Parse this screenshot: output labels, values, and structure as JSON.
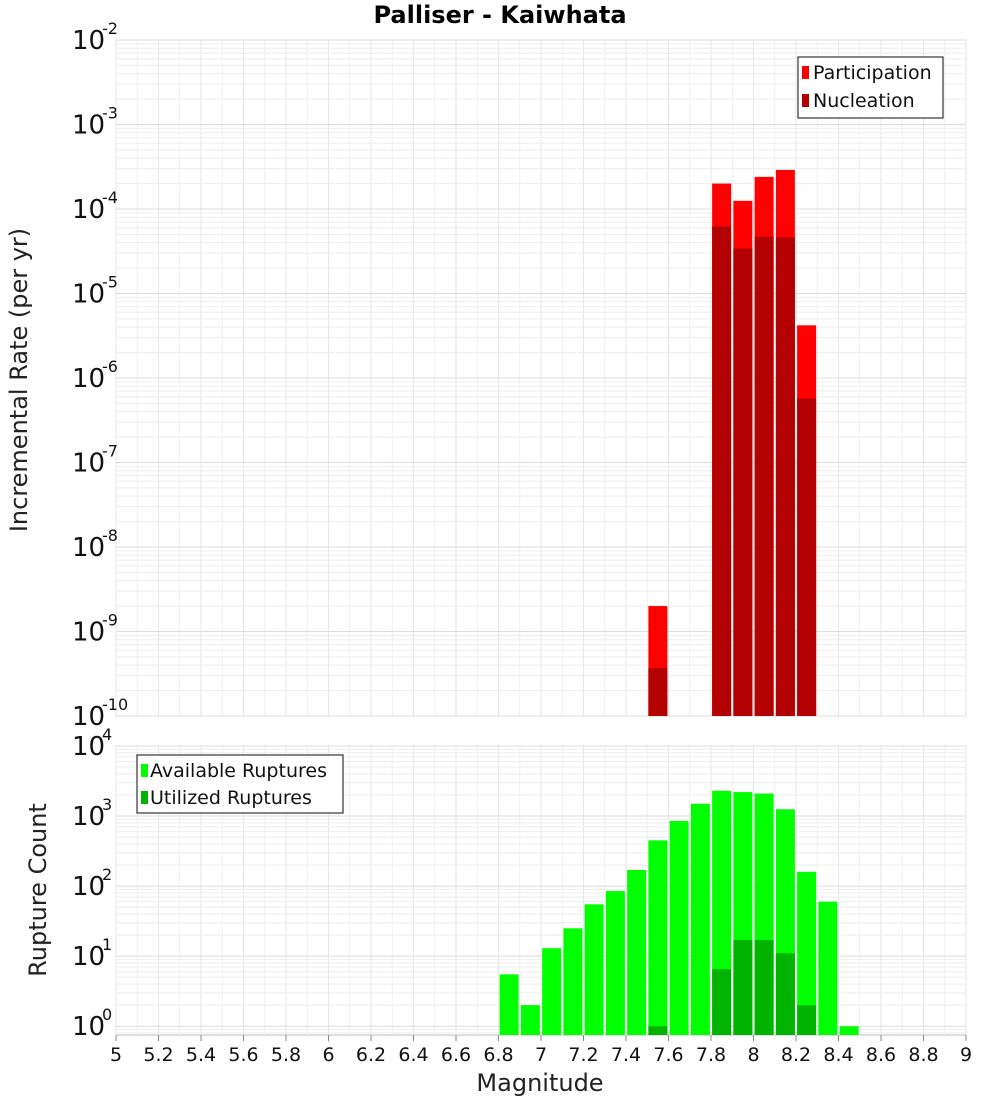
{
  "chart_data": [
    {
      "type": "bar",
      "title": "Palliser - Kaiwhata",
      "xlabel": "",
      "ylabel": "Incremental Rate (per yr)",
      "yscale": "log",
      "ylim": [
        1e-10,
        0.01
      ],
      "xlim": [
        5,
        9
      ],
      "ytick_labels": [
        {
          "base": "10",
          "exp": "-10",
          "value": 1e-10
        },
        {
          "base": "10",
          "exp": "-9",
          "value": 1e-09
        },
        {
          "base": "10",
          "exp": "-8",
          "value": 1e-08
        },
        {
          "base": "10",
          "exp": "-7",
          "value": 1e-07
        },
        {
          "base": "10",
          "exp": "-6",
          "value": 1e-06
        },
        {
          "base": "10",
          "exp": "-5",
          "value": 1e-05
        },
        {
          "base": "10",
          "exp": "-4",
          "value": 0.0001
        },
        {
          "base": "10",
          "exp": "-3",
          "value": 0.001
        },
        {
          "base": "10",
          "exp": "-2",
          "value": 0.01
        }
      ],
      "legend": {
        "placement": "top-right"
      },
      "series": [
        {
          "name": "Participation",
          "color": "#ff0000",
          "points": [
            [
              7.55,
              2e-09
            ],
            [
              7.85,
              0.0002
            ],
            [
              7.95,
              0.000125
            ],
            [
              8.05,
              0.00024
            ],
            [
              8.15,
              0.00029
            ],
            [
              8.25,
              4.2e-06
            ]
          ]
        },
        {
          "name": "Nucleation",
          "color": "#b30000",
          "points": [
            [
              7.55,
              3.7e-10
            ],
            [
              7.85,
              6.2e-05
            ],
            [
              7.95,
              3.4e-05
            ],
            [
              8.05,
              4.7e-05
            ],
            [
              8.15,
              4.6e-05
            ],
            [
              8.25,
              5.7e-07
            ]
          ]
        }
      ]
    },
    {
      "type": "bar",
      "title": "",
      "xlabel": "Magnitude",
      "ylabel": "Rupture Count",
      "yscale": "log",
      "ylim": [
        0.75,
        10000
      ],
      "xlim": [
        5,
        9
      ],
      "ytick_labels": [
        {
          "base": "10",
          "exp": "0",
          "value": 1
        },
        {
          "base": "10",
          "exp": "1",
          "value": 10
        },
        {
          "base": "10",
          "exp": "2",
          "value": 100
        },
        {
          "base": "10",
          "exp": "3",
          "value": 1000
        },
        {
          "base": "10",
          "exp": "4",
          "value": 10000
        }
      ],
      "xtick_labels": [
        "5",
        "5.2",
        "5.4",
        "5.6",
        "5.8",
        "6",
        "6.2",
        "6.4",
        "6.6",
        "6.8",
        "7",
        "7.2",
        "7.4",
        "7.6",
        "7.8",
        "8",
        "8.2",
        "8.4",
        "8.6",
        "8.8",
        "9"
      ],
      "legend": {
        "placement": "top-left"
      },
      "series": [
        {
          "name": "Available Ruptures",
          "color": "#00ff00",
          "points": [
            [
              6.85,
              5.5
            ],
            [
              6.95,
              2
            ],
            [
              7.05,
              13
            ],
            [
              7.15,
              25
            ],
            [
              7.25,
              55
            ],
            [
              7.35,
              85
            ],
            [
              7.45,
              170
            ],
            [
              7.55,
              450
            ],
            [
              7.65,
              850
            ],
            [
              7.75,
              1500
            ],
            [
              7.85,
              2300
            ],
            [
              7.95,
              2200
            ],
            [
              8.05,
              2100
            ],
            [
              8.15,
              1250
            ],
            [
              8.25,
              160
            ],
            [
              8.35,
              60
            ],
            [
              8.45,
              1
            ]
          ]
        },
        {
          "name": "Utilized Ruptures",
          "color": "#00b300",
          "points": [
            [
              7.55,
              1
            ],
            [
              7.85,
              6.5
            ],
            [
              7.95,
              17
            ],
            [
              8.05,
              17
            ],
            [
              8.15,
              11
            ],
            [
              8.25,
              2
            ]
          ]
        }
      ]
    }
  ]
}
